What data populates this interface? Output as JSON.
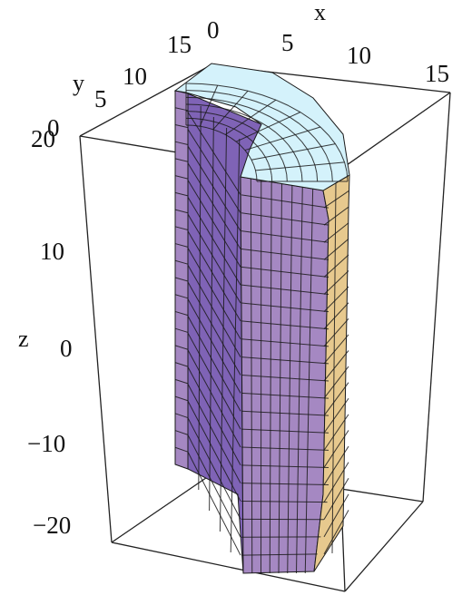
{
  "figure": {
    "x_axis": {
      "label": "x",
      "ticks": [
        "0",
        "5",
        "10",
        "15"
      ]
    },
    "y_axis": {
      "label": "y",
      "ticks": [
        "0",
        "5",
        "10",
        "15"
      ]
    },
    "z_axis": {
      "label": "z",
      "ticks": [
        "20",
        "10",
        "0",
        "−10",
        "−20"
      ]
    },
    "colors": {
      "outer_face": "#a588c2",
      "inner_face": "#7f63b6",
      "top_face": "#d4f2fb",
      "end_face": "#e7c98e",
      "mesh_lines": "#1a1a1a",
      "box_edges": "#222222"
    }
  }
}
